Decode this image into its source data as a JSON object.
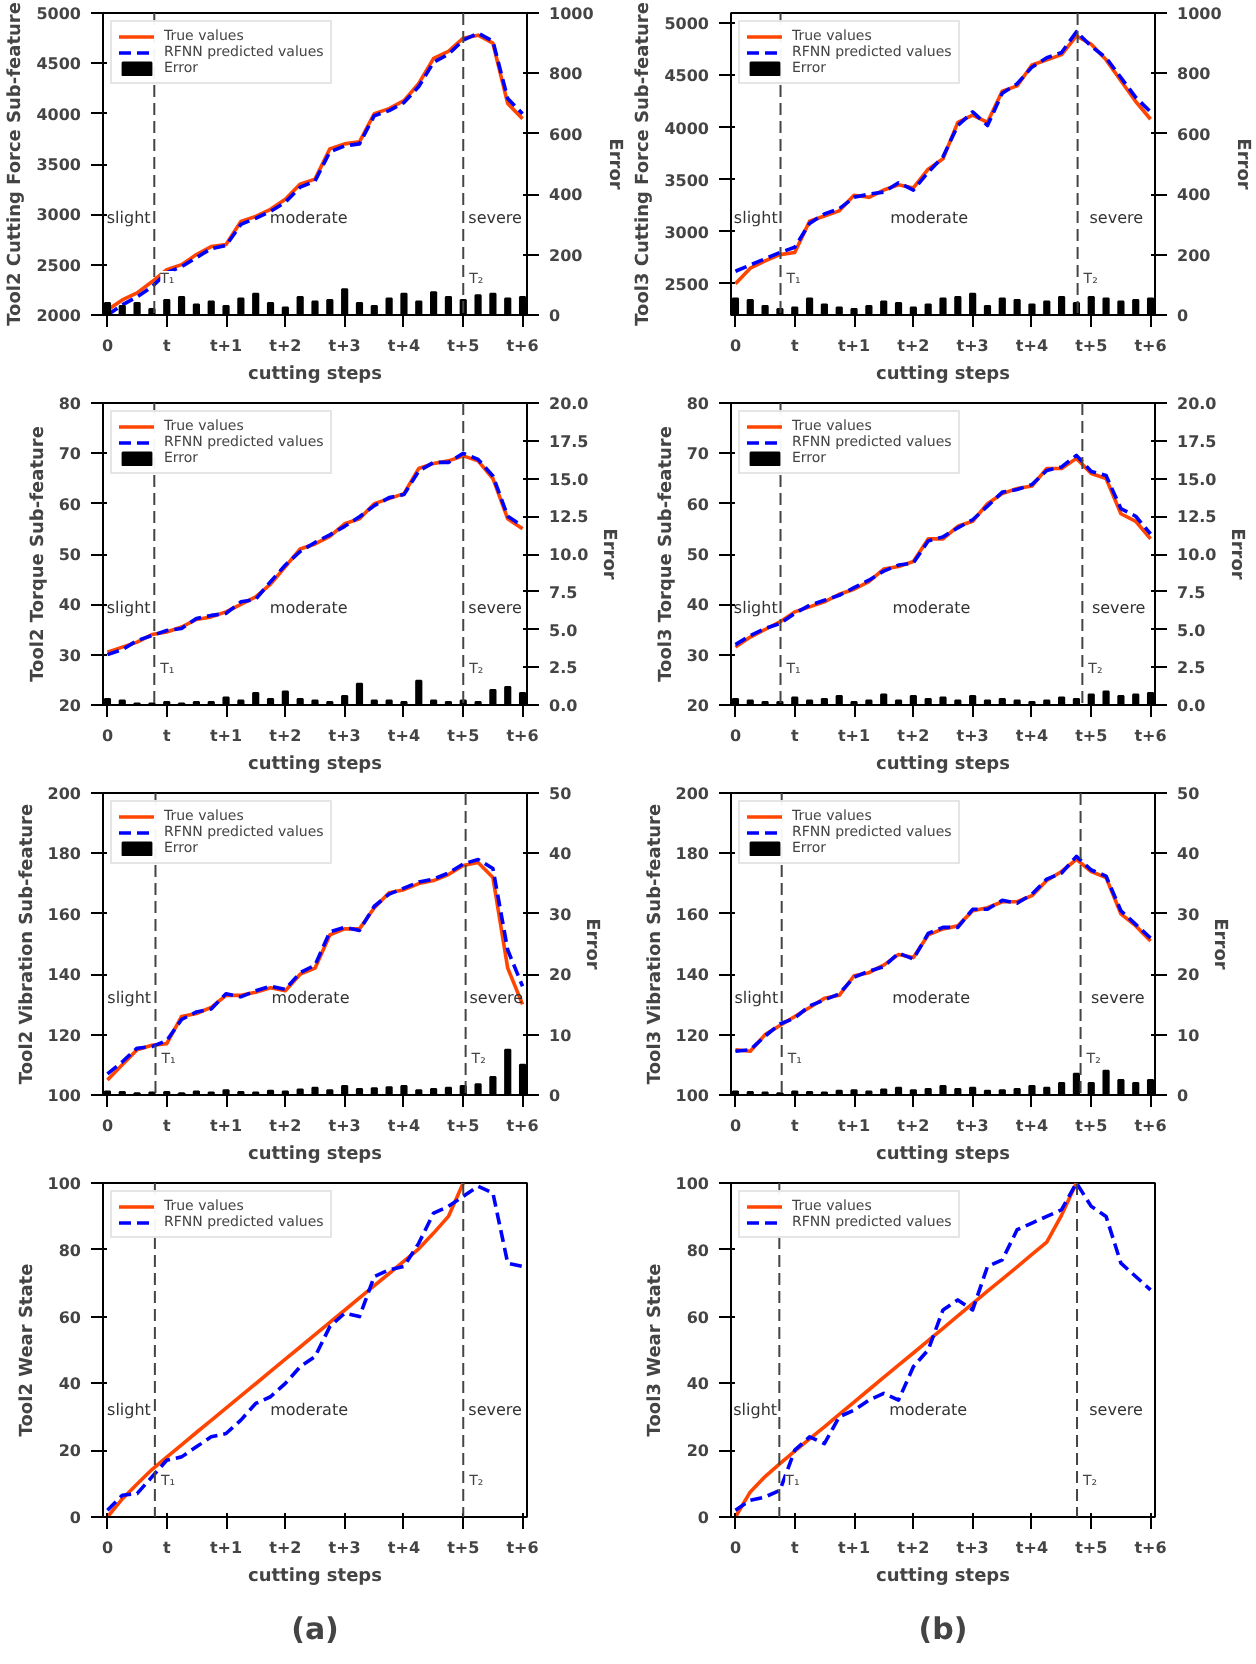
{
  "chart_data": [
    {
      "type": "line",
      "xlabel": "cutting steps",
      "ylabel": "Tool2 Cutting Force Sub-feature",
      "y2label": "Error",
      "ylim": [
        2000,
        5000
      ],
      "y2lim": [
        0,
        1000
      ],
      "categories": [
        "0",
        null,
        null,
        null,
        "t",
        null,
        null,
        null,
        "t+1",
        null,
        null,
        null,
        "t+2",
        null,
        null,
        null,
        "t+3",
        null,
        null,
        null,
        "t+4",
        null,
        null,
        null,
        "t+5",
        null,
        null,
        null,
        "t+6"
      ],
      "yticks": [
        2000,
        2500,
        3000,
        3500,
        4000,
        4500,
        5000
      ],
      "y2ticks": [
        0,
        200,
        400,
        600,
        800,
        1000
      ],
      "legend": "top left",
      "series": [
        {
          "name": "True values",
          "color": "#ff4500",
          "line_style": "solid",
          "values": [
            2050,
            2150,
            2220,
            2330,
            2450,
            2500,
            2600,
            2680,
            2700,
            2930,
            2980,
            3050,
            3150,
            3300,
            3350,
            3650,
            3700,
            3720,
            4000,
            4050,
            4130,
            4300,
            4550,
            4620,
            4750,
            4780,
            4700,
            4100,
            3950
          ]
        },
        {
          "name": "RFNN predicted values",
          "color": "#0000ff",
          "line_style": "dashed",
          "values": [
            2000,
            2100,
            2180,
            2280,
            2420,
            2480,
            2570,
            2660,
            2690,
            2900,
            2960,
            3030,
            3120,
            3270,
            3330,
            3620,
            3680,
            3700,
            3980,
            4030,
            4110,
            4270,
            4510,
            4590,
            4730,
            4800,
            4720,
            4150,
            4000
          ]
        },
        {
          "name": "Error",
          "type": "bar",
          "axis": "y2",
          "color": "#000000",
          "values": [
            40,
            30,
            40,
            20,
            50,
            60,
            35,
            45,
            30,
            55,
            70,
            40,
            25,
            60,
            45,
            50,
            85,
            40,
            30,
            55,
            70,
            45,
            75,
            60,
            50,
            65,
            70,
            55,
            60
          ]
        }
      ],
      "annotations": [
        "slight",
        "moderate",
        "severe",
        "T₁",
        "T₂"
      ]
    },
    {
      "type": "line",
      "xlabel": "cutting steps",
      "ylabel": "Tool3 Cutting Force Sub-feature",
      "y2label": "Error",
      "ylim": [
        2200,
        5100
      ],
      "y2lim": [
        0,
        1000
      ],
      "categories": [
        "0",
        null,
        null,
        null,
        "t",
        null,
        null,
        null,
        "t+1",
        null,
        null,
        null,
        "t+2",
        null,
        null,
        null,
        "t+3",
        null,
        null,
        null,
        "t+4",
        null,
        null,
        null,
        "t+5",
        null,
        null,
        null,
        "t+6"
      ],
      "yticks": [
        2500,
        3000,
        3500,
        4000,
        4500,
        5000
      ],
      "y2ticks": [
        0,
        200,
        400,
        600,
        800,
        1000
      ],
      "legend": "top left",
      "series": [
        {
          "name": "True values",
          "color": "#ff4500",
          "line_style": "solid",
          "values": [
            2500,
            2650,
            2720,
            2780,
            2800,
            3100,
            3150,
            3200,
            3350,
            3330,
            3400,
            3450,
            3420,
            3600,
            3700,
            4050,
            4120,
            4050,
            4350,
            4400,
            4600,
            4650,
            4700,
            4880,
            4800,
            4650,
            4450,
            4250,
            4080
          ]
        },
        {
          "name": "RFNN predicted values",
          "color": "#0000ff",
          "line_style": "dashed",
          "values": [
            2620,
            2680,
            2740,
            2800,
            2850,
            3080,
            3170,
            3220,
            3330,
            3360,
            3380,
            3470,
            3400,
            3570,
            3720,
            4020,
            4150,
            4020,
            4330,
            4420,
            4580,
            4670,
            4720,
            4920,
            4780,
            4670,
            4480,
            4290,
            4150
          ]
        },
        {
          "name": "Error",
          "type": "bar",
          "axis": "y2",
          "color": "#000000",
          "values": [
            55,
            50,
            30,
            20,
            25,
            55,
            35,
            25,
            20,
            30,
            45,
            40,
            25,
            35,
            55,
            60,
            70,
            30,
            55,
            50,
            35,
            45,
            60,
            40,
            60,
            55,
            45,
            50,
            55
          ]
        }
      ],
      "annotations": [
        "slight",
        "moderate",
        "severe",
        "T₁",
        "T₂"
      ]
    },
    {
      "type": "line",
      "xlabel": "cutting steps",
      "ylabel": "Tool2 Torque Sub-feature",
      "y2label": "Error",
      "ylim": [
        20,
        80
      ],
      "y2lim": [
        0,
        20
      ],
      "categories": [
        "0",
        null,
        null,
        null,
        "t",
        null,
        null,
        null,
        "t+1",
        null,
        null,
        null,
        "t+2",
        null,
        null,
        null,
        "t+3",
        null,
        null,
        null,
        "t+4",
        null,
        null,
        null,
        "t+5",
        null,
        null,
        null,
        "t+6"
      ],
      "yticks": [
        20,
        30,
        40,
        50,
        60,
        70,
        80
      ],
      "y2ticks": [
        {
          "value": 0,
          "label": "0.0"
        },
        {
          "value": 2.5,
          "label": "2.5"
        },
        {
          "value": 5,
          "label": "5.0"
        },
        {
          "value": 7.5,
          "label": "7.5"
        },
        {
          "value": 10,
          "label": "10.0"
        },
        {
          "value": 12.5,
          "label": "12.5"
        },
        {
          "value": 15,
          "label": "15.0"
        },
        {
          "value": 17.5,
          "label": "17.5"
        },
        {
          "value": 20,
          "label": "20.0"
        }
      ],
      "legend": "top left",
      "series": [
        {
          "name": "True values",
          "color": "#ff4500",
          "line_style": "solid",
          "values": [
            30.5,
            31.5,
            32.5,
            34,
            34.5,
            35.5,
            37,
            37.5,
            38.5,
            40,
            41.5,
            44,
            47.5,
            51,
            52,
            53.5,
            56,
            57,
            60,
            61,
            62,
            67,
            68,
            68.5,
            69.5,
            68.5,
            65,
            57,
            55
          ]
        },
        {
          "name": "RFNN predicted values",
          "color": "#0000ff",
          "line_style": "dashed",
          "values": [
            30,
            31,
            32.8,
            33.8,
            34.8,
            35.2,
            37.2,
            37.8,
            38.2,
            40.5,
            41,
            44.5,
            47.8,
            50.5,
            52.3,
            53.8,
            55.5,
            57.4,
            59.6,
            61.2,
            61.8,
            66.5,
            68.2,
            68.2,
            70,
            68.8,
            65.5,
            57.5,
            55.5
          ]
        },
        {
          "name": "Error",
          "type": "bar",
          "axis": "y2",
          "color": "#000000",
          "values": [
            0.4,
            0.3,
            0.1,
            0.1,
            0.2,
            0.1,
            0.2,
            0.2,
            0.5,
            0.3,
            0.8,
            0.4,
            0.9,
            0.4,
            0.3,
            0.2,
            0.6,
            1.4,
            0.3,
            0.3,
            0.2,
            1.6,
            0.3,
            0.2,
            0.3,
            0.2,
            1.0,
            1.2,
            0.8
          ]
        }
      ],
      "annotations": [
        "slight",
        "moderate",
        "severe",
        "T₁",
        "T₂"
      ]
    },
    {
      "type": "line",
      "xlabel": "cutting steps",
      "ylabel": "Tool3 Torque Sub-feature",
      "y2label": "Error",
      "ylim": [
        20,
        80
      ],
      "y2lim": [
        0,
        20
      ],
      "categories": [
        "0",
        null,
        null,
        null,
        "t",
        null,
        null,
        null,
        "t+1",
        null,
        null,
        null,
        "t+2",
        null,
        null,
        null,
        "t+3",
        null,
        null,
        null,
        "t+4",
        null,
        null,
        null,
        "t+5",
        null,
        null,
        null,
        "t+6"
      ],
      "yticks": [
        20,
        30,
        40,
        50,
        60,
        70,
        80
      ],
      "y2ticks": [
        {
          "value": 0,
          "label": "0.0"
        },
        {
          "value": 2.5,
          "label": "2.5"
        },
        {
          "value": 5,
          "label": "5.0"
        },
        {
          "value": 7.5,
          "label": "7.5"
        },
        {
          "value": 10,
          "label": "10.0"
        },
        {
          "value": 12.5,
          "label": "12.5"
        },
        {
          "value": 15,
          "label": "15.0"
        },
        {
          "value": 17.5,
          "label": "17.5"
        },
        {
          "value": 20,
          "label": "20.0"
        }
      ],
      "legend": "top left",
      "series": [
        {
          "name": "True values",
          "color": "#ff4500",
          "line_style": "solid",
          "values": [
            31.5,
            33.5,
            35,
            36.5,
            38.5,
            39.5,
            40.5,
            42,
            43,
            44.5,
            47,
            47.5,
            48.5,
            53,
            53,
            55.5,
            56.5,
            60,
            62,
            63,
            63.5,
            67,
            67,
            69,
            66,
            65,
            58,
            56.5,
            53
          ]
        },
        {
          "name": "RFNN predicted values",
          "color": "#0000ff",
          "line_style": "dashed",
          "values": [
            32,
            33.8,
            35.2,
            36.2,
            38.2,
            39.8,
            40.8,
            41.8,
            43.3,
            44.8,
            46.6,
            47.8,
            48.2,
            52.6,
            53.4,
            55.2,
            56.8,
            59.5,
            62.3,
            62.8,
            63.8,
            66.6,
            67.3,
            69.6,
            66.4,
            65.6,
            59,
            57.5,
            54
          ]
        },
        {
          "name": "Error",
          "type": "bar",
          "axis": "y2",
          "color": "#000000",
          "values": [
            0.4,
            0.3,
            0.2,
            0.2,
            0.5,
            0.3,
            0.4,
            0.6,
            0.2,
            0.3,
            0.7,
            0.3,
            0.6,
            0.4,
            0.5,
            0.3,
            0.6,
            0.3,
            0.4,
            0.3,
            0.2,
            0.3,
            0.5,
            0.4,
            0.7,
            0.9,
            0.6,
            0.7,
            0.8
          ]
        }
      ],
      "annotations": [
        "slight",
        "moderate",
        "severe",
        "T₁",
        "T₂"
      ]
    },
    {
      "type": "line",
      "xlabel": "cutting steps",
      "ylabel": "Tool2 Vibration Sub-feature",
      "y2label": "Error",
      "ylim": [
        100,
        200
      ],
      "y2lim": [
        0,
        50
      ],
      "categories": [
        "0",
        null,
        null,
        null,
        "t",
        null,
        null,
        null,
        "t+1",
        null,
        null,
        null,
        "t+2",
        null,
        null,
        null,
        "t+3",
        null,
        null,
        null,
        "t+4",
        null,
        null,
        null,
        "t+5",
        null,
        null,
        null,
        "t+6"
      ],
      "yticks": [
        100,
        120,
        140,
        160,
        180,
        200
      ],
      "y2ticks": [
        0,
        10,
        20,
        30,
        40,
        50
      ],
      "legend": "top left",
      "series": [
        {
          "name": "True values",
          "color": "#ff4500",
          "line_style": "solid",
          "values": [
            105,
            110,
            115,
            116.5,
            117,
            126,
            127,
            129,
            133,
            133,
            134,
            135.5,
            134.5,
            140,
            142,
            153,
            155,
            155,
            162,
            167,
            168,
            170,
            171,
            173,
            176,
            177,
            172,
            142,
            130
          ]
        },
        {
          "name": "RFNN predicted values",
          "color": "#0000ff",
          "line_style": "dashed",
          "values": [
            107,
            111,
            115.5,
            116,
            118,
            125,
            127.5,
            128.5,
            133.5,
            132.5,
            134.5,
            136,
            135,
            140.5,
            143,
            154,
            155.5,
            154.5,
            162.5,
            166.5,
            168.5,
            170.5,
            171.5,
            173.5,
            176.5,
            178,
            175,
            148,
            136
          ]
        },
        {
          "name": "Error",
          "type": "bar",
          "axis": "y2",
          "color": "#000000",
          "values": [
            0.6,
            0.5,
            0.3,
            0.4,
            0.5,
            0.3,
            0.6,
            0.4,
            0.8,
            0.5,
            0.4,
            0.7,
            0.6,
            0.9,
            1.2,
            0.8,
            1.5,
            1.0,
            1.1,
            1.3,
            1.5,
            0.8,
            1.0,
            1.2,
            1.5,
            1.8,
            3.0,
            7.5,
            5.0
          ]
        }
      ],
      "annotations": [
        "slight",
        "moderate",
        "severe",
        "T₁",
        "T₂"
      ]
    },
    {
      "type": "line",
      "xlabel": "cutting steps",
      "ylabel": "Tool3 Vibration Sub-feature",
      "y2label": "Error",
      "ylim": [
        100,
        200
      ],
      "y2lim": [
        0,
        50
      ],
      "categories": [
        "0",
        null,
        null,
        null,
        "t",
        null,
        null,
        null,
        "t+1",
        null,
        null,
        null,
        "t+2",
        null,
        null,
        null,
        "t+3",
        null,
        null,
        null,
        "t+4",
        null,
        null,
        null,
        "t+5",
        null,
        null,
        null,
        "t+6"
      ],
      "yticks": [
        100,
        120,
        140,
        160,
        180,
        200
      ],
      "y2ticks": [
        0,
        10,
        20,
        30,
        40,
        50
      ],
      "legend": "top left",
      "series": [
        {
          "name": "True values",
          "color": "#ff4500",
          "line_style": "solid",
          "values": [
            115,
            114.5,
            120,
            123,
            126,
            129,
            132,
            133,
            139.5,
            140.5,
            143,
            146.5,
            145.5,
            153,
            155,
            156,
            161,
            162,
            164,
            164,
            166,
            171,
            174,
            178,
            174,
            172,
            160,
            156,
            151
          ]
        },
        {
          "name": "RFNN predicted values",
          "color": "#0000ff",
          "line_style": "dashed",
          "values": [
            114.5,
            115,
            119.5,
            123.5,
            125.5,
            129.5,
            131.5,
            133.5,
            139,
            141,
            142.5,
            147,
            145,
            153.5,
            155.5,
            155.5,
            161.5,
            161.5,
            164.5,
            163.5,
            166.5,
            171.5,
            173.5,
            179,
            174.5,
            172.5,
            161,
            156.5,
            152
          ]
        },
        {
          "name": "Error",
          "type": "bar",
          "axis": "y2",
          "color": "#000000",
          "values": [
            0.6,
            0.5,
            0.4,
            0.3,
            0.6,
            0.5,
            0.4,
            0.7,
            0.8,
            0.6,
            0.9,
            1.2,
            0.8,
            1.0,
            1.5,
            1.0,
            1.2,
            0.7,
            0.8,
            1.0,
            1.5,
            1.2,
            2.0,
            3.5,
            2.0,
            4.0,
            2.5,
            2.0,
            2.5
          ]
        }
      ],
      "annotations": [
        "slight",
        "moderate",
        "severe",
        "T₁",
        "T₂"
      ]
    },
    {
      "type": "line",
      "xlabel": "cutting steps",
      "ylabel": "Tool2 Wear State",
      "ylim": [
        0,
        100
      ],
      "categories": [
        "0",
        null,
        null,
        null,
        "t",
        null,
        null,
        null,
        "t+1",
        null,
        null,
        null,
        "t+2",
        null,
        null,
        null,
        "t+3",
        null,
        null,
        null,
        "t+4",
        null,
        null,
        null,
        "t+5",
        null,
        null,
        null,
        "t+6"
      ],
      "yticks": [
        0,
        20,
        40,
        60,
        80,
        100
      ],
      "legend": "top left",
      "series": [
        {
          "name": "True values",
          "color": "#ff4500",
          "line_style": "solid",
          "values": [
            0,
            5.4,
            9.9,
            14.2,
            17.9,
            21.6,
            25.3,
            28.9,
            32.6,
            36.3,
            39.9,
            43.6,
            47.3,
            50.9,
            54.6,
            58.3,
            61.9,
            65.6,
            69.3,
            72.9,
            76.6,
            80.3,
            85,
            90,
            100,
            null,
            null,
            null,
            null
          ]
        },
        {
          "name": "RFNN predicted values",
          "color": "#0000ff",
          "line_style": "dashed",
          "values": [
            2,
            6.5,
            7,
            12,
            17,
            18,
            21,
            24,
            25,
            29,
            34,
            36,
            40,
            45,
            48,
            57,
            61,
            60,
            72,
            74,
            75,
            82,
            91,
            93,
            96,
            99,
            97,
            76,
            75
          ]
        }
      ],
      "annotations": [
        "slight",
        "moderate",
        "severe",
        "T₁",
        "T₂",
        "(a)"
      ]
    },
    {
      "type": "line",
      "xlabel": "cutting steps",
      "ylabel": "Tool3 Wear State",
      "ylim": [
        0,
        100
      ],
      "categories": [
        "0",
        null,
        null,
        null,
        "t",
        null,
        null,
        null,
        "t+1",
        null,
        null,
        null,
        "t+2",
        null,
        null,
        null,
        "t+3",
        null,
        null,
        null,
        "t+4",
        null,
        null,
        null,
        "t+5",
        null,
        null,
        null,
        "t+6"
      ],
      "yticks": [
        0,
        20,
        40,
        60,
        80,
        100
      ],
      "legend": "top left",
      "series": [
        {
          "name": "True values",
          "color": "#ff4500",
          "line_style": "solid",
          "values": [
            0,
            7.5,
            12.1,
            16,
            19.7,
            23.4,
            27.0,
            30.7,
            34.4,
            38.1,
            41.8,
            45.5,
            49.1,
            52.8,
            56.5,
            60.2,
            63.9,
            67.6,
            71.2,
            74.9,
            78.6,
            82.3,
            90.4,
            100,
            null,
            null,
            null,
            null,
            null
          ]
        },
        {
          "name": "RFNN predicted values",
          "color": "#0000ff",
          "line_style": "dashed",
          "values": [
            2,
            5,
            6,
            8,
            20,
            24,
            22,
            30,
            32,
            35,
            37,
            35,
            45,
            50,
            62,
            65,
            62,
            75,
            77,
            86,
            88,
            90,
            92,
            100,
            93,
            90,
            76,
            72,
            68
          ]
        }
      ],
      "annotations": [
        "slight",
        "moderate",
        "severe",
        "T₁",
        "T₂",
        "(b)"
      ]
    }
  ]
}
